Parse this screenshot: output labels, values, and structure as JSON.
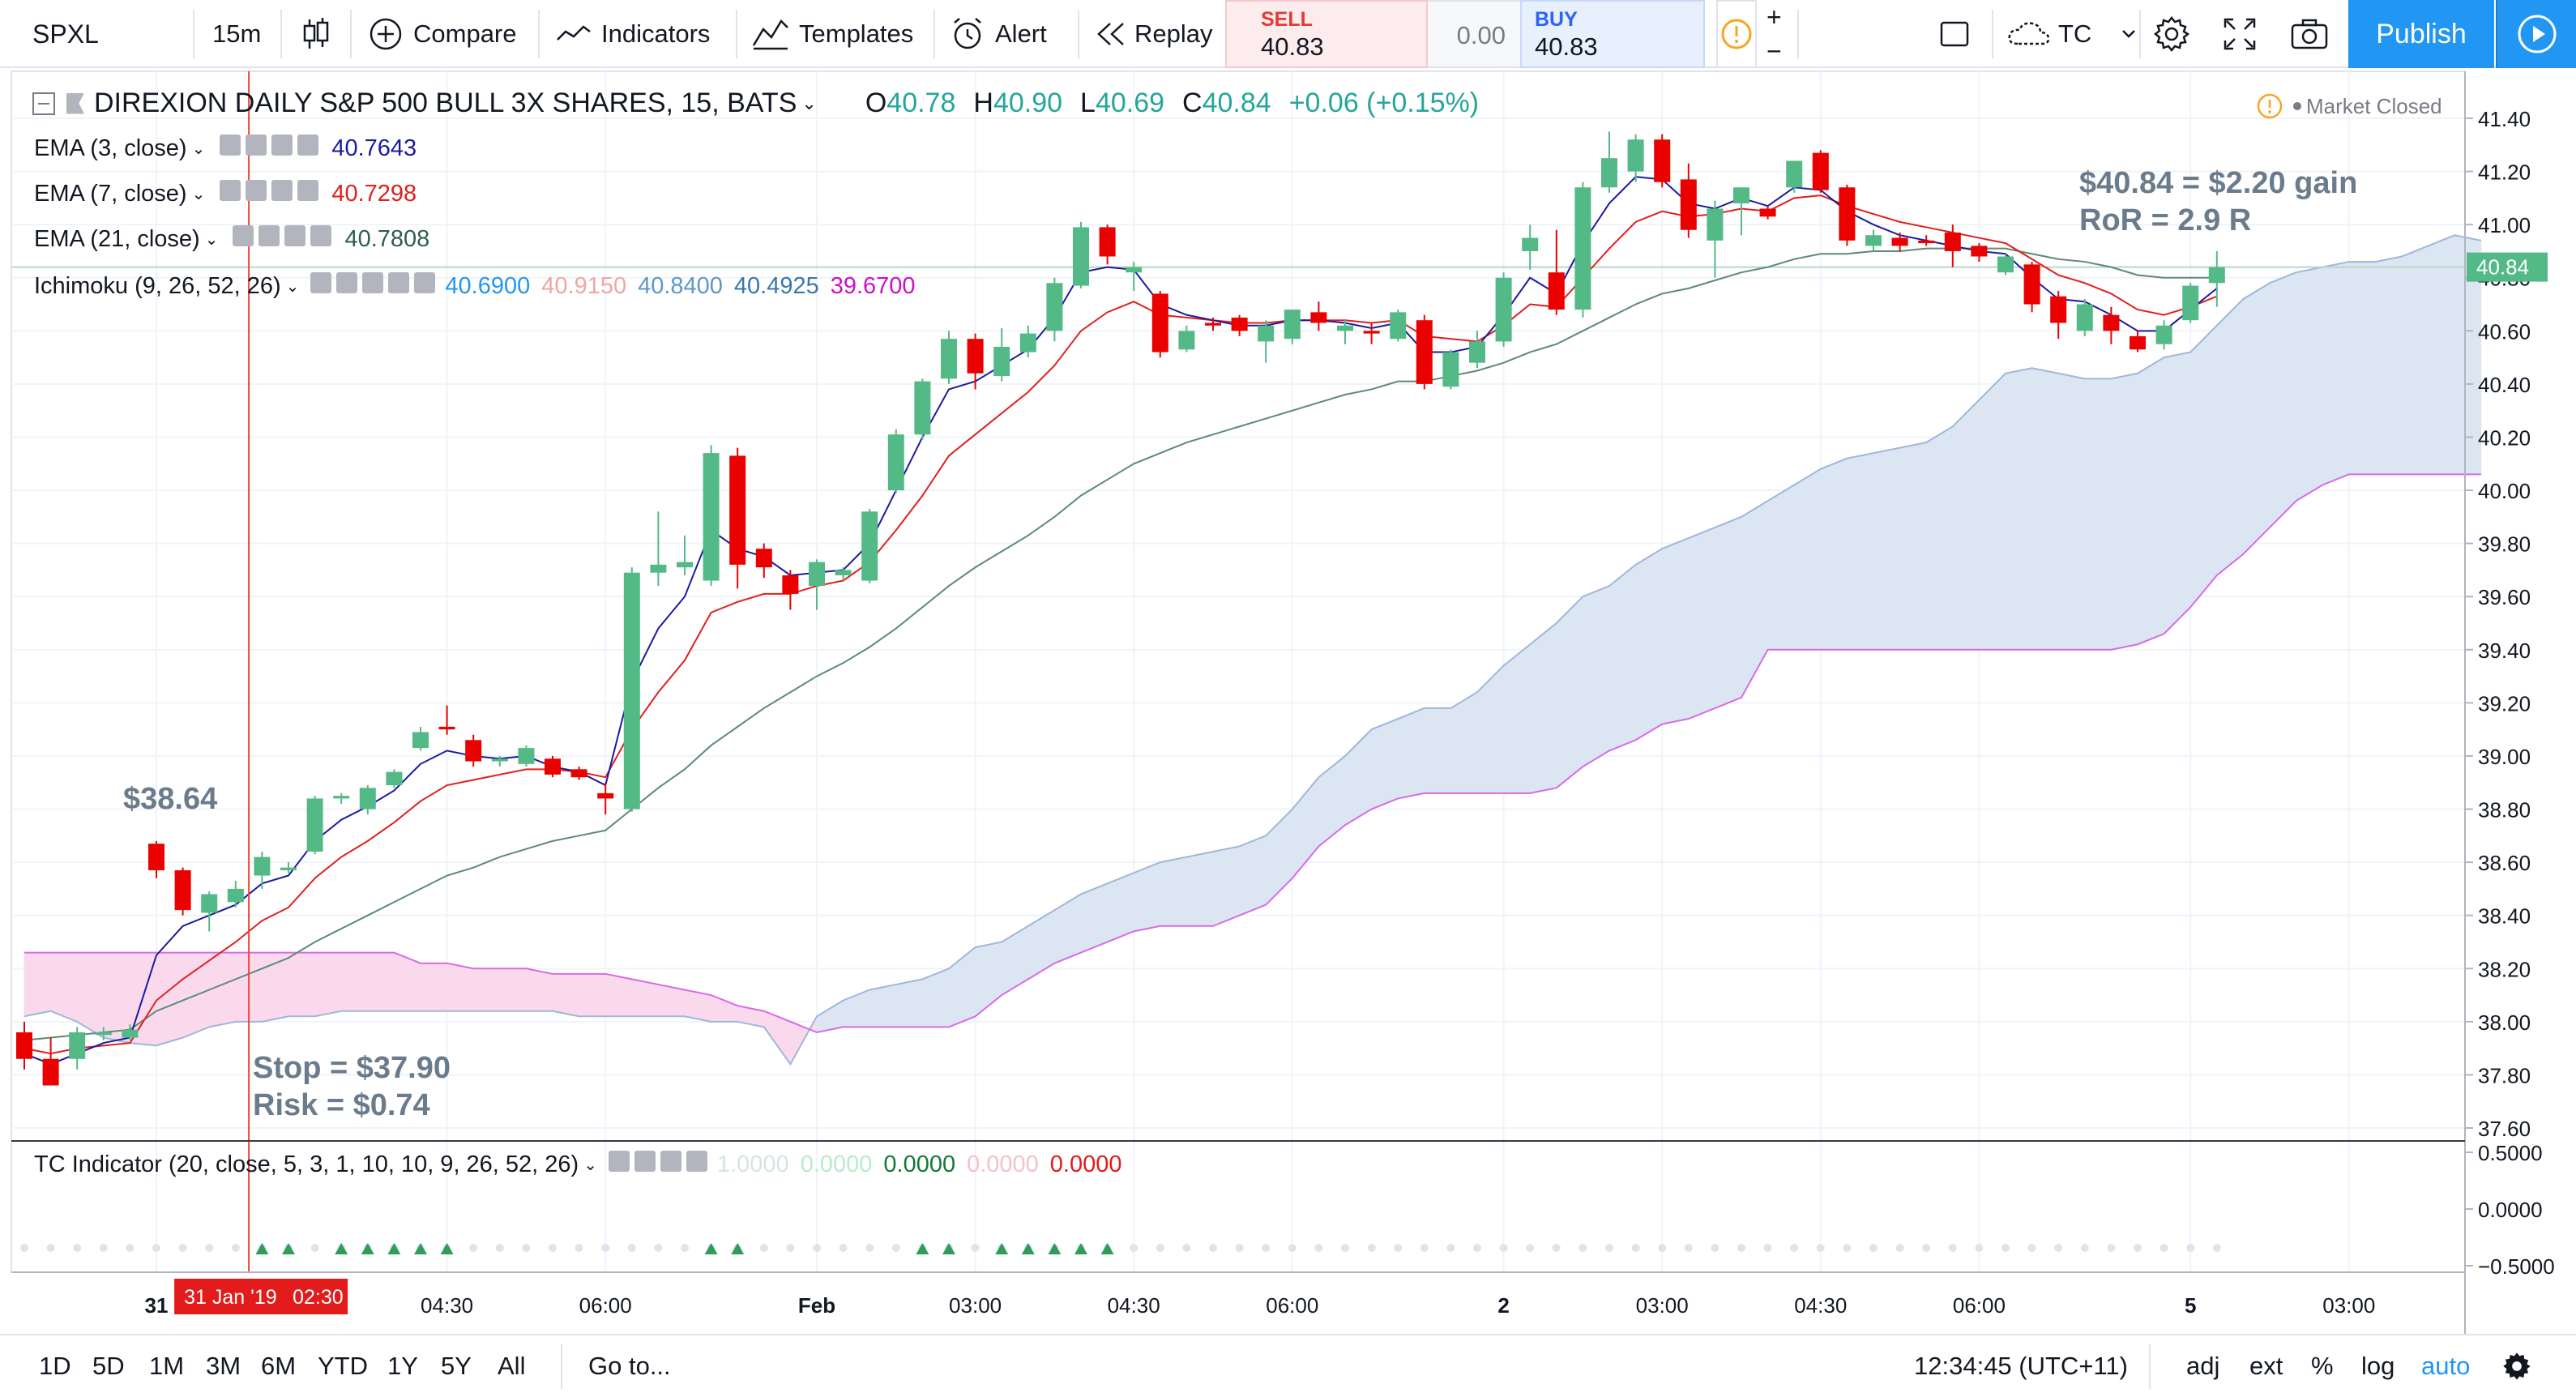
{
  "toolbar": {
    "symbol": "SPXL",
    "interval": "15m",
    "compare": "Compare",
    "indicators": "Indicators",
    "templates": "Templates",
    "alert": "Alert",
    "replay": "Replay",
    "sell_label": "SELL",
    "sell_price": "40.83",
    "spread": "0.00",
    "buy_label": "BUY",
    "buy_price": "40.83",
    "plus": "+",
    "minus": "−",
    "layout_name": "TC",
    "publish": "Publish"
  },
  "legend": {
    "title": "DIREXION DAILY S&P 500 BULL 3X SHARES, 15, BATS",
    "ohlc": {
      "o_label": "O",
      "o": "40.78",
      "h_label": "H",
      "h": "40.90",
      "l_label": "L",
      "l": "40.69",
      "c_label": "C",
      "c": "40.84",
      "change": "+0.06 (+0.15%)"
    },
    "market_status": "Market Closed",
    "ema3": {
      "label": "EMA (3, close)",
      "value": "40.7643"
    },
    "ema7": {
      "label": "EMA (7, close)",
      "value": "40.7298"
    },
    "ema21": {
      "label": "EMA (21, close)",
      "value": "40.7808"
    },
    "ichimoku": {
      "label": "Ichimoku (9, 26, 52, 26)",
      "v1": "40.6900",
      "v2": "40.9150",
      "v3": "40.8400",
      "v4": "40.4925",
      "v5": "39.6700"
    },
    "tc": {
      "label": "TC Indicator (20, close, 5, 3, 1, 10, 10, 9, 26, 52, 26)",
      "v1": "1.0000",
      "v2": "0.0000",
      "v3": "0.0000",
      "v4": "0.0000",
      "v5": "0.0000"
    }
  },
  "annotations": {
    "entry": "$38.64",
    "stop": "Stop = $37.90",
    "risk": "Risk = $0.74",
    "gain": "$40.84 = $2.20 gain",
    "ror": "RoR = 2.9 R"
  },
  "bottombar": {
    "ranges": [
      "1D",
      "5D",
      "1M",
      "3M",
      "6M",
      "YTD",
      "1Y",
      "5Y",
      "All"
    ],
    "goto": "Go to...",
    "clock": "12:34:45 (UTC+11)",
    "adj": "adj",
    "ext": "ext",
    "pct": "%",
    "log": "log",
    "auto": "auto"
  },
  "colors": {
    "up": "#53b987",
    "down": "#eb0000",
    "ema3": "#1b1b9e",
    "ema7": "#e02020",
    "ema21": "#5e8a74",
    "cloud_bull": "#dce6f3",
    "cloud_bear": "#fbd9ec",
    "span_b": "#d66be6",
    "accent": "#2196f3"
  },
  "chart_data": {
    "type": "candlestick",
    "price_axis": {
      "min": 37.6,
      "max": 41.4,
      "ticks": [
        "41.40",
        "41.20",
        "41.00",
        "40.80",
        "40.60",
        "40.40",
        "40.20",
        "40.00",
        "39.80",
        "39.60",
        "39.40",
        "39.20",
        "39.00",
        "38.80",
        "38.60",
        "38.40",
        "38.20",
        "38.00",
        "37.80",
        "37.60"
      ]
    },
    "last_price_label": "40.84",
    "osc_axis": {
      "ticks": [
        "0.5000",
        "0.0000",
        "−0.5000"
      ]
    },
    "time_labels": [
      {
        "text": "31",
        "bar": 5
      },
      {
        "text": "04:30",
        "bar": 16
      },
      {
        "text": "06:00",
        "bar": 22
      },
      {
        "text": "Feb",
        "bar": 30
      },
      {
        "text": "03:00",
        "bar": 36
      },
      {
        "text": "04:30",
        "bar": 42
      },
      {
        "text": "06:00",
        "bar": 48
      },
      {
        "text": "2",
        "bar": 56
      },
      {
        "text": "03:00",
        "bar": 62
      },
      {
        "text": "04:30",
        "bar": 68
      },
      {
        "text": "06:00",
        "bar": 74
      },
      {
        "text": "5",
        "bar": 82
      },
      {
        "text": "03:00",
        "bar": 88
      }
    ],
    "cursor_label": {
      "date": "31 Jan '19",
      "time": "02:30",
      "bar": 8.5
    },
    "candles": [
      {
        "o": 37.96,
        "h": 38.0,
        "l": 37.82,
        "c": 37.86
      },
      {
        "o": 37.86,
        "h": 37.94,
        "l": 37.76,
        "c": 37.76
      },
      {
        "o": 37.86,
        "h": 37.98,
        "l": 37.82,
        "c": 37.96
      },
      {
        "o": 37.95,
        "h": 37.98,
        "l": 37.93,
        "c": 37.96
      },
      {
        "o": 37.94,
        "h": 37.99,
        "l": 37.93,
        "c": 37.97
      },
      {
        "o": 38.67,
        "h": 38.68,
        "l": 38.54,
        "c": 38.57
      },
      {
        "o": 38.57,
        "h": 38.58,
        "l": 38.4,
        "c": 38.42
      },
      {
        "o": 38.41,
        "h": 38.49,
        "l": 38.34,
        "c": 38.48
      },
      {
        "o": 38.45,
        "h": 38.53,
        "l": 38.43,
        "c": 38.5
      },
      {
        "o": 38.55,
        "h": 38.64,
        "l": 38.5,
        "c": 38.62
      },
      {
        "o": 38.57,
        "h": 38.6,
        "l": 38.56,
        "c": 38.58
      },
      {
        "o": 38.64,
        "h": 38.85,
        "l": 38.63,
        "c": 38.84
      },
      {
        "o": 38.84,
        "h": 38.86,
        "l": 38.82,
        "c": 38.85
      },
      {
        "o": 38.8,
        "h": 38.89,
        "l": 38.78,
        "c": 38.88
      },
      {
        "o": 38.89,
        "h": 38.95,
        "l": 38.88,
        "c": 38.94
      },
      {
        "o": 39.03,
        "h": 39.11,
        "l": 39.02,
        "c": 39.09
      },
      {
        "o": 39.11,
        "h": 39.19,
        "l": 39.08,
        "c": 39.1
      },
      {
        "o": 39.06,
        "h": 39.08,
        "l": 38.96,
        "c": 38.98
      },
      {
        "o": 38.98,
        "h": 39.0,
        "l": 38.96,
        "c": 38.99
      },
      {
        "o": 38.97,
        "h": 39.04,
        "l": 38.96,
        "c": 39.03
      },
      {
        "o": 38.99,
        "h": 39.0,
        "l": 38.92,
        "c": 38.93
      },
      {
        "o": 38.95,
        "h": 38.96,
        "l": 38.91,
        "c": 38.92
      },
      {
        "o": 38.86,
        "h": 38.9,
        "l": 38.78,
        "c": 38.84
      },
      {
        "o": 38.8,
        "h": 39.71,
        "l": 38.79,
        "c": 39.69
      },
      {
        "o": 39.69,
        "h": 39.92,
        "l": 39.64,
        "c": 39.72
      },
      {
        "o": 39.71,
        "h": 39.83,
        "l": 39.68,
        "c": 39.73
      },
      {
        "o": 39.66,
        "h": 40.17,
        "l": 39.64,
        "c": 40.14
      },
      {
        "o": 40.13,
        "h": 40.16,
        "l": 39.63,
        "c": 39.72
      },
      {
        "o": 39.78,
        "h": 39.8,
        "l": 39.67,
        "c": 39.71
      },
      {
        "o": 39.68,
        "h": 39.7,
        "l": 39.55,
        "c": 39.61
      },
      {
        "o": 39.64,
        "h": 39.74,
        "l": 39.55,
        "c": 39.73
      },
      {
        "o": 39.68,
        "h": 39.71,
        "l": 39.66,
        "c": 39.7
      },
      {
        "o": 39.66,
        "h": 39.93,
        "l": 39.65,
        "c": 39.92
      },
      {
        "o": 40.0,
        "h": 40.23,
        "l": 39.99,
        "c": 40.21
      },
      {
        "o": 40.21,
        "h": 40.42,
        "l": 40.19,
        "c": 40.41
      },
      {
        "o": 40.42,
        "h": 40.6,
        "l": 40.4,
        "c": 40.57
      },
      {
        "o": 40.57,
        "h": 40.59,
        "l": 40.38,
        "c": 40.44
      },
      {
        "o": 40.43,
        "h": 40.61,
        "l": 40.41,
        "c": 40.54
      },
      {
        "o": 40.52,
        "h": 40.62,
        "l": 40.5,
        "c": 40.59
      },
      {
        "o": 40.6,
        "h": 40.8,
        "l": 40.56,
        "c": 40.78
      },
      {
        "o": 40.77,
        "h": 41.01,
        "l": 40.76,
        "c": 40.99
      },
      {
        "o": 40.99,
        "h": 41.0,
        "l": 40.85,
        "c": 40.88
      },
      {
        "o": 40.82,
        "h": 40.86,
        "l": 40.75,
        "c": 40.84
      },
      {
        "o": 40.74,
        "h": 40.75,
        "l": 40.5,
        "c": 40.52
      },
      {
        "o": 40.53,
        "h": 40.62,
        "l": 40.52,
        "c": 40.6
      },
      {
        "o": 40.63,
        "h": 40.65,
        "l": 40.6,
        "c": 40.62
      },
      {
        "o": 40.65,
        "h": 40.66,
        "l": 40.58,
        "c": 40.6
      },
      {
        "o": 40.56,
        "h": 40.64,
        "l": 40.48,
        "c": 40.62
      },
      {
        "o": 40.57,
        "h": 40.68,
        "l": 40.55,
        "c": 40.68
      },
      {
        "o": 40.67,
        "h": 40.71,
        "l": 40.6,
        "c": 40.63
      },
      {
        "o": 40.6,
        "h": 40.64,
        "l": 40.55,
        "c": 40.62
      },
      {
        "o": 40.6,
        "h": 40.63,
        "l": 40.55,
        "c": 40.59
      },
      {
        "o": 40.57,
        "h": 40.68,
        "l": 40.56,
        "c": 40.67
      },
      {
        "o": 40.64,
        "h": 40.66,
        "l": 40.38,
        "c": 40.4
      },
      {
        "o": 40.39,
        "h": 40.53,
        "l": 40.38,
        "c": 40.52
      },
      {
        "o": 40.48,
        "h": 40.6,
        "l": 40.46,
        "c": 40.56
      },
      {
        "o": 40.56,
        "h": 40.82,
        "l": 40.54,
        "c": 40.8
      },
      {
        "o": 40.9,
        "h": 41.0,
        "l": 40.83,
        "c": 40.95
      },
      {
        "o": 40.82,
        "h": 40.98,
        "l": 40.66,
        "c": 40.68
      },
      {
        "o": 40.68,
        "h": 41.16,
        "l": 40.65,
        "c": 41.14
      },
      {
        "o": 41.14,
        "h": 41.35,
        "l": 41.12,
        "c": 41.25
      },
      {
        "o": 41.2,
        "h": 41.34,
        "l": 41.16,
        "c": 41.32
      },
      {
        "o": 41.32,
        "h": 41.34,
        "l": 41.14,
        "c": 41.16
      },
      {
        "o": 41.17,
        "h": 41.23,
        "l": 40.95,
        "c": 40.98
      },
      {
        "o": 40.94,
        "h": 41.09,
        "l": 40.8,
        "c": 41.06
      },
      {
        "o": 41.08,
        "h": 41.14,
        "l": 40.96,
        "c": 41.14
      },
      {
        "o": 41.06,
        "h": 41.07,
        "l": 41.02,
        "c": 41.03
      },
      {
        "o": 41.14,
        "h": 41.24,
        "l": 41.12,
        "c": 41.24
      },
      {
        "o": 41.27,
        "h": 41.28,
        "l": 41.12,
        "c": 41.13
      },
      {
        "o": 41.14,
        "h": 41.15,
        "l": 40.92,
        "c": 40.94
      },
      {
        "o": 40.92,
        "h": 40.98,
        "l": 40.9,
        "c": 40.96
      },
      {
        "o": 40.95,
        "h": 40.97,
        "l": 40.9,
        "c": 40.92
      },
      {
        "o": 40.94,
        "h": 40.96,
        "l": 40.92,
        "c": 40.93
      },
      {
        "o": 40.97,
        "h": 41.0,
        "l": 40.84,
        "c": 40.9
      },
      {
        "o": 40.92,
        "h": 40.93,
        "l": 40.86,
        "c": 40.88
      },
      {
        "o": 40.82,
        "h": 40.89,
        "l": 40.81,
        "c": 40.88
      },
      {
        "o": 40.85,
        "h": 40.86,
        "l": 40.67,
        "c": 40.7
      },
      {
        "o": 40.73,
        "h": 40.75,
        "l": 40.57,
        "c": 40.63
      },
      {
        "o": 40.6,
        "h": 40.72,
        "l": 40.58,
        "c": 40.7
      },
      {
        "o": 40.66,
        "h": 40.69,
        "l": 40.55,
        "c": 40.6
      },
      {
        "o": 40.58,
        "h": 40.6,
        "l": 40.52,
        "c": 40.53
      },
      {
        "o": 40.55,
        "h": 40.64,
        "l": 40.53,
        "c": 40.62
      },
      {
        "o": 40.64,
        "h": 40.78,
        "l": 40.63,
        "c": 40.77
      },
      {
        "o": 40.78,
        "h": 40.9,
        "l": 40.69,
        "c": 40.84
      }
    ],
    "ema3": [
      37.88,
      37.84,
      37.88,
      37.92,
      37.94,
      38.25,
      38.36,
      38.4,
      38.44,
      38.52,
      38.55,
      38.68,
      38.76,
      38.81,
      38.87,
      38.97,
      39.02,
      39.0,
      38.99,
      39.0,
      38.96,
      38.94,
      38.89,
      39.28,
      39.48,
      39.6,
      39.85,
      39.78,
      39.75,
      39.68,
      39.69,
      39.7,
      39.8,
      40.0,
      40.2,
      40.38,
      40.41,
      40.47,
      40.53,
      40.65,
      40.82,
      40.84,
      40.83,
      40.7,
      40.66,
      40.64,
      40.62,
      40.62,
      40.64,
      40.64,
      40.63,
      40.61,
      40.63,
      40.52,
      40.52,
      40.54,
      40.66,
      40.8,
      40.74,
      40.93,
      41.08,
      41.18,
      41.17,
      41.08,
      41.06,
      41.1,
      41.07,
      41.14,
      41.13,
      41.05,
      41.0,
      40.96,
      40.94,
      40.92,
      40.9,
      40.89,
      40.8,
      40.72,
      40.71,
      40.66,
      40.6,
      40.6,
      40.68,
      40.76
    ],
    "ema7": [
      37.9,
      37.88,
      37.9,
      37.91,
      37.92,
      38.08,
      38.16,
      38.23,
      38.3,
      38.38,
      38.43,
      38.54,
      38.62,
      38.68,
      38.75,
      38.83,
      38.89,
      38.91,
      38.93,
      38.95,
      38.95,
      38.94,
      38.92,
      39.1,
      39.24,
      39.36,
      39.54,
      39.58,
      39.61,
      39.61,
      39.64,
      39.66,
      39.73,
      39.85,
      39.98,
      40.13,
      40.21,
      40.29,
      40.37,
      40.47,
      40.6,
      40.67,
      40.71,
      40.66,
      40.65,
      40.64,
      40.63,
      40.63,
      40.64,
      40.64,
      40.64,
      40.63,
      40.64,
      40.58,
      40.57,
      40.56,
      40.62,
      40.7,
      40.69,
      40.8,
      40.91,
      41.01,
      41.05,
      41.03,
      41.04,
      41.06,
      41.05,
      41.1,
      41.11,
      41.07,
      41.04,
      41.01,
      40.99,
      40.97,
      40.95,
      40.93,
      40.87,
      40.81,
      40.78,
      40.74,
      40.68,
      40.66,
      40.69,
      40.73
    ],
    "ema21": [
      37.93,
      37.94,
      37.95,
      37.96,
      37.97,
      38.04,
      38.08,
      38.12,
      38.16,
      38.2,
      38.24,
      38.3,
      38.35,
      38.4,
      38.45,
      38.5,
      38.55,
      38.58,
      38.62,
      38.65,
      38.68,
      38.7,
      38.72,
      38.8,
      38.88,
      38.95,
      39.04,
      39.11,
      39.18,
      39.24,
      39.3,
      39.35,
      39.41,
      39.48,
      39.56,
      39.64,
      39.71,
      39.77,
      39.83,
      39.9,
      39.98,
      40.04,
      40.1,
      40.14,
      40.18,
      40.21,
      40.24,
      40.27,
      40.3,
      40.33,
      40.36,
      40.38,
      40.41,
      40.41,
      40.43,
      40.45,
      40.48,
      40.52,
      40.55,
      40.6,
      40.65,
      40.7,
      40.74,
      40.76,
      40.79,
      40.82,
      40.84,
      40.87,
      40.89,
      40.89,
      40.9,
      40.9,
      40.91,
      40.91,
      40.91,
      40.91,
      40.89,
      40.87,
      40.86,
      40.84,
      40.81,
      40.8,
      40.8,
      40.8
    ],
    "cloud_span_a": [
      38.02,
      38.04,
      38.0,
      37.94,
      37.92,
      37.91,
      37.94,
      37.98,
      38.0,
      38.0,
      38.02,
      38.02,
      38.04,
      38.04,
      38.04,
      38.04,
      38.04,
      38.04,
      38.04,
      38.04,
      38.04,
      38.02,
      38.02,
      38.02,
      38.02,
      38.02,
      38.0,
      38.0,
      37.98,
      37.84,
      38.02,
      38.08,
      38.12,
      38.14,
      38.16,
      38.2,
      38.28,
      38.3,
      38.36,
      38.42,
      38.48,
      38.52,
      38.56,
      38.6,
      38.62,
      38.64,
      38.66,
      38.7,
      38.8,
      38.92,
      39.0,
      39.1,
      39.14,
      39.18,
      39.18,
      39.24,
      39.34,
      39.42,
      39.5,
      39.6,
      39.64,
      39.72,
      39.78,
      39.82,
      39.86,
      39.9,
      39.96,
      40.02,
      40.08,
      40.12,
      40.14,
      40.16,
      40.18,
      40.24,
      40.34,
      40.44,
      40.46,
      40.44,
      40.42,
      40.42,
      40.44,
      40.5,
      40.52,
      40.62,
      40.72,
      40.78,
      40.82,
      40.84,
      40.86,
      40.86,
      40.88,
      40.92,
      40.96,
      40.94
    ],
    "cloud_span_b": [
      38.26,
      38.26,
      38.26,
      38.26,
      38.26,
      38.26,
      38.26,
      38.26,
      38.26,
      38.26,
      38.26,
      38.26,
      38.26,
      38.26,
      38.26,
      38.22,
      38.22,
      38.2,
      38.2,
      38.2,
      38.18,
      38.18,
      38.18,
      38.16,
      38.14,
      38.12,
      38.1,
      38.06,
      38.04,
      38.0,
      37.96,
      37.98,
      37.98,
      37.98,
      37.98,
      37.98,
      38.02,
      38.1,
      38.16,
      38.22,
      38.26,
      38.3,
      38.34,
      38.36,
      38.36,
      38.36,
      38.4,
      38.44,
      38.54,
      38.66,
      38.74,
      38.8,
      38.84,
      38.86,
      38.86,
      38.86,
      38.86,
      38.86,
      38.88,
      38.96,
      39.02,
      39.06,
      39.12,
      39.14,
      39.18,
      39.22,
      39.4,
      39.4,
      39.4,
      39.4,
      39.4,
      39.4,
      39.4,
      39.4,
      39.4,
      39.4,
      39.4,
      39.4,
      39.4,
      39.4,
      39.42,
      39.46,
      39.56,
      39.68,
      39.76,
      39.86,
      39.96,
      40.02,
      40.06,
      40.06,
      40.06,
      40.06,
      40.06,
      40.06
    ],
    "tc_arrows_up_bars": [
      9,
      10,
      12,
      13,
      14,
      15,
      16,
      26,
      27,
      34,
      35,
      37,
      38,
      39,
      40,
      41
    ]
  }
}
